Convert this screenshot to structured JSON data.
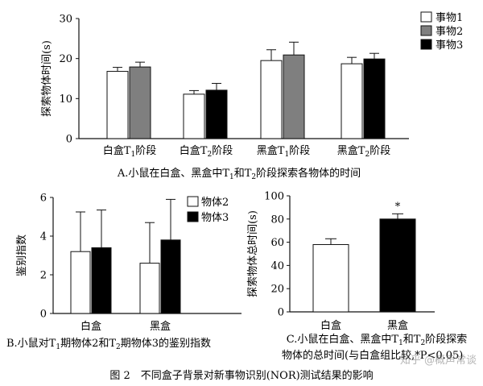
{
  "colors": {
    "white": "#ffffff",
    "gray": "#7f7f7f",
    "black": "#000000",
    "axis": "#111111"
  },
  "chart_data": [
    {
      "id": "A",
      "type": "bar",
      "ylabel": "探索物体时间(s)",
      "ylim": [
        0,
        30
      ],
      "yticks": [
        0,
        10,
        20,
        30
      ],
      "groups": [
        {
          "label": "白盒",
          "sub": "1",
          "suffix": "阶段",
          "bars": [
            {
              "series": 0,
              "value": 16.8,
              "err": 1.0
            },
            {
              "series": 1,
              "value": 17.9,
              "err": 1.2
            }
          ]
        },
        {
          "label": "白盒",
          "sub": "2",
          "suffix": "阶段",
          "bars": [
            {
              "series": 0,
              "value": 11.1,
              "err": 0.9
            },
            {
              "series": 2,
              "value": 12.1,
              "err": 1.7
            }
          ]
        },
        {
          "label": "黑盒",
          "sub": "1",
          "suffix": "阶段",
          "bars": [
            {
              "series": 0,
              "value": 19.5,
              "err": 2.7
            },
            {
              "series": 1,
              "value": 20.9,
              "err": 3.2
            }
          ]
        },
        {
          "label": "黑盒",
          "sub": "2",
          "suffix": "阶段",
          "bars": [
            {
              "series": 0,
              "value": 18.7,
              "err": 1.6
            },
            {
              "series": 2,
              "value": 19.9,
              "err": 1.4
            }
          ]
        }
      ],
      "series": [
        {
          "name": "事物1",
          "color": "#ffffff"
        },
        {
          "name": "事物2",
          "color": "#7f7f7f"
        },
        {
          "name": "事物3",
          "color": "#000000"
        }
      ],
      "legend": "top-right",
      "caption": {
        "pre": "A.小鼠在白盒、黑盒中T",
        "s1": "1",
        "mid": "和T",
        "s2": "2",
        "post": "阶段探索各物体的时间"
      }
    },
    {
      "id": "B",
      "type": "bar",
      "ylabel": "鉴别指数",
      "ylim": [
        0,
        6
      ],
      "yticks": [
        0,
        2,
        4,
        6
      ],
      "groups": [
        {
          "label": "白盒",
          "bars": [
            {
              "series": 0,
              "value": 3.2,
              "err": 2.05
            },
            {
              "series": 1,
              "value": 3.4,
              "err": 1.95
            }
          ]
        },
        {
          "label": "黑盒",
          "bars": [
            {
              "series": 0,
              "value": 2.6,
              "err": 2.1
            },
            {
              "series": 1,
              "value": 3.8,
              "err": 2.1
            }
          ]
        }
      ],
      "series": [
        {
          "name": "物体2",
          "color": "#ffffff"
        },
        {
          "name": "物体3",
          "color": "#000000"
        }
      ],
      "legend": "top-right",
      "caption": {
        "pre": "B.小鼠对T",
        "s1": "1",
        "mid": "期物体2和T",
        "s2": "2",
        "post": "期物体3的鉴别指数"
      }
    },
    {
      "id": "C",
      "type": "bar",
      "ylabel": "探索物体总时间(s)",
      "ylim": [
        0,
        100
      ],
      "yticks": [
        0,
        20,
        40,
        60,
        80,
        100
      ],
      "categories": [
        "白盒",
        "黑盒"
      ],
      "values": [
        58,
        80
      ],
      "errors": [
        5,
        4.5
      ],
      "colors": [
        "#ffffff",
        "#000000"
      ],
      "annotations": [
        "",
        "*"
      ],
      "caption": {
        "line1": {
          "pre": "C.小鼠在白盒、黑盒中T",
          "s1": "1",
          "mid": "和T",
          "s2": "2",
          "post": "阶段探索"
        },
        "line2": "物体的总时间(与白盒组比较,*P<0.05)"
      }
    }
  ],
  "figure_caption": "图 2　不同盒子背景对新事物识别(NOR)测试结果的影响",
  "watermark": "知乎 @概声常谈"
}
